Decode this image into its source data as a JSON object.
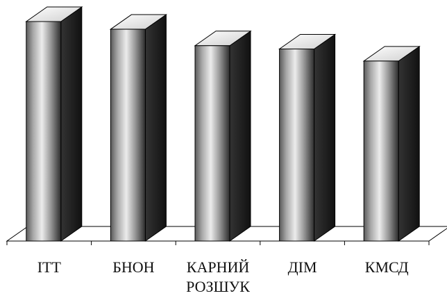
{
  "chart_data": {
    "type": "bar",
    "style": "3d-cylinder-bars",
    "categories": [
      [
        "ІТТ"
      ],
      [
        "БНОН"
      ],
      [
        "КАРНИЙ",
        "РОЗШУК"
      ],
      [
        "ДІМ"
      ],
      [
        "КМСД"
      ]
    ],
    "values": [
      100,
      96.5,
      89,
      87.5,
      82
    ],
    "title": "",
    "xlabel": "",
    "ylabel": "",
    "ylim": [
      0,
      100
    ],
    "grid": false,
    "legend": "none",
    "colors": {
      "bar_light": "#e8e8e8",
      "bar_mid": "#b0b0b0",
      "bar_dark": "#3a3a3a",
      "bar_side": "#1e1e1e",
      "bar_top": "#f4f4f4",
      "outline": "#000000",
      "floor": "#ffffff"
    }
  }
}
